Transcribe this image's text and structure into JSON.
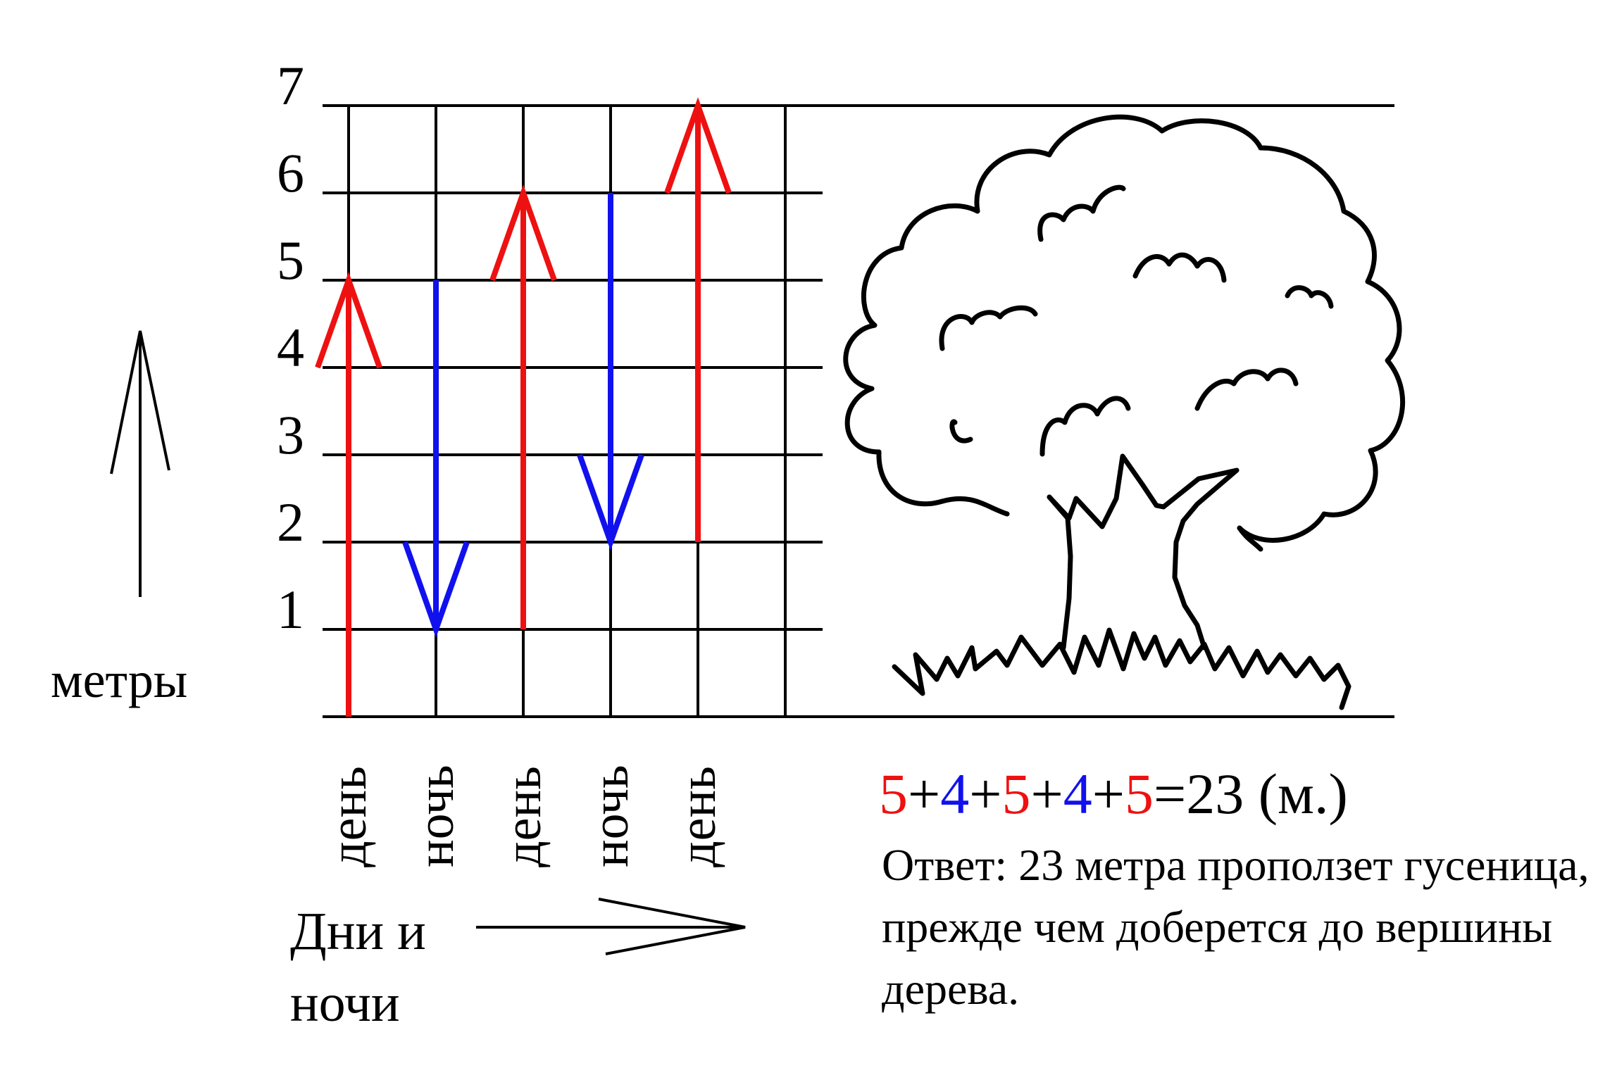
{
  "y_axis": {
    "label": "метры",
    "ticks": [
      "1",
      "2",
      "3",
      "4",
      "5",
      "6",
      "7"
    ]
  },
  "x_axis": {
    "label_line1": "Дни и",
    "label_line2": "ночи",
    "columns": [
      "день",
      "ночь",
      "день",
      "ночь",
      "день"
    ]
  },
  "moves": [
    {
      "phase": "день",
      "from": 0,
      "to": 5,
      "color": "#ee1111"
    },
    {
      "phase": "ночь",
      "from": 5,
      "to": 1,
      "color": "#1111ee"
    },
    {
      "phase": "день",
      "from": 1,
      "to": 6,
      "color": "#ee1111"
    },
    {
      "phase": "ночь",
      "from": 6,
      "to": 2,
      "color": "#1111ee"
    },
    {
      "phase": "день",
      "from": 2,
      "to": 7,
      "color": "#ee1111"
    }
  ],
  "equation": {
    "terms": [
      {
        "text": "5",
        "color": "#ee1111"
      },
      {
        "text": "+",
        "color": "#000000"
      },
      {
        "text": "4",
        "color": "#1111ee"
      },
      {
        "text": "+",
        "color": "#000000"
      },
      {
        "text": "5",
        "color": "#ee1111"
      },
      {
        "text": "+",
        "color": "#000000"
      },
      {
        "text": "4",
        "color": "#1111ee"
      },
      {
        "text": "+",
        "color": "#000000"
      },
      {
        "text": "5",
        "color": "#ee1111"
      },
      {
        "text": "=23 (м.)",
        "color": "#000000"
      }
    ]
  },
  "answer": "Ответ: 23 метра проползет гусеница, прежде чем доберется до вершины дерева.",
  "illustration": "tree-icon"
}
